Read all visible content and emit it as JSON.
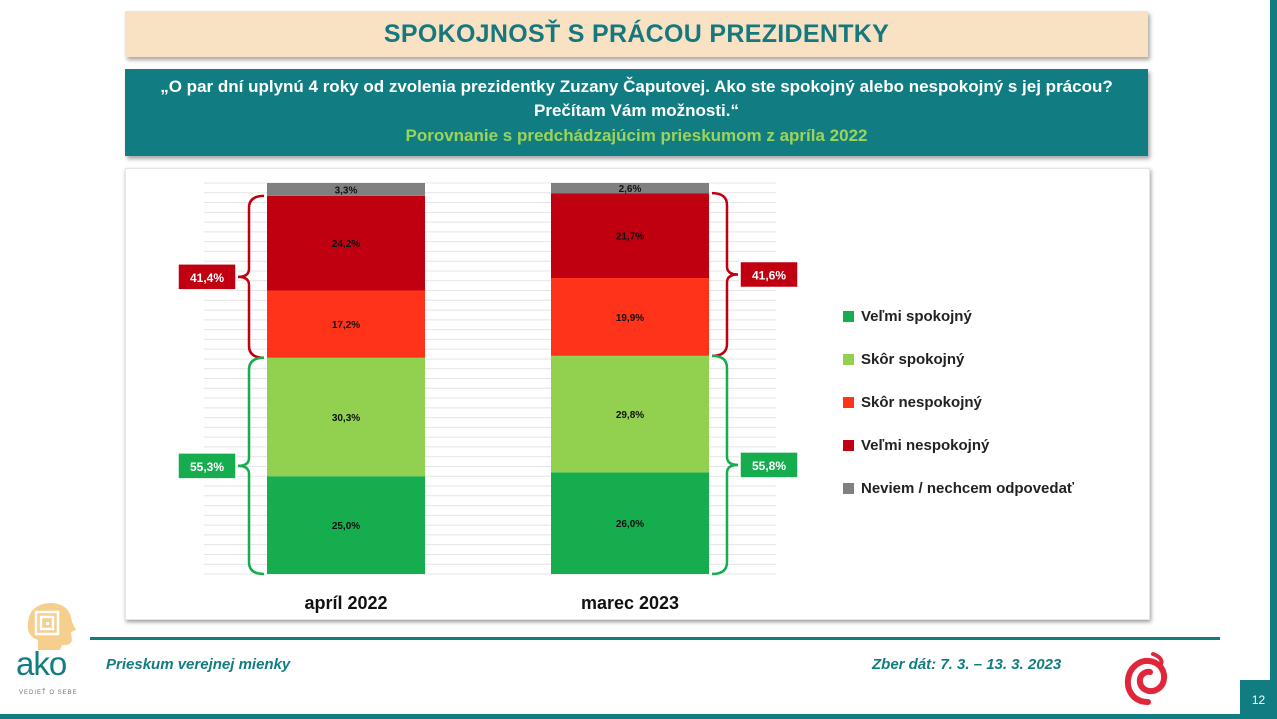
{
  "title": "SPOKOJNOSŤ S PRÁCOU PREZIDENTKY",
  "question": "„O par dní uplynú 4 roky od zvolenia prezidentky Zuzany Čaputovej. Ako ste spokojný alebo nespokojný s jej prácou? Prečítam Vám možnosti.“",
  "comparison": "Porovnanie s predchádzajúcim prieskumom z apríla 2022",
  "chart_data": {
    "type": "bar",
    "stacked": true,
    "percent_scale": true,
    "ylim": [
      0,
      100
    ],
    "grid": true,
    "legend_position": "right",
    "categories": [
      "apríl 2022",
      "marec 2023"
    ],
    "series": [
      {
        "name": "Veľmi spokojný",
        "color": "#16ad4e",
        "values": [
          25.0,
          26.0
        ],
        "labels": [
          "25,0%",
          "26,0%"
        ]
      },
      {
        "name": "Skôr spokojný",
        "color": "#92d050",
        "values": [
          30.3,
          29.8
        ],
        "labels": [
          "30,3%",
          "29,8%"
        ]
      },
      {
        "name": "Skôr nespokojný",
        "color": "#ff3319",
        "values": [
          17.2,
          19.9
        ],
        "labels": [
          "17,2%",
          "19,9%"
        ]
      },
      {
        "name": "Veľmi nespokojný",
        "color": "#c00010",
        "values": [
          24.2,
          21.7
        ],
        "labels": [
          "24,2%",
          "21,7%"
        ]
      },
      {
        "name": "Neviem / nechcem odpovedať",
        "color": "#808080",
        "values": [
          3.3,
          2.6
        ],
        "labels": [
          "3,3%",
          "2,6%"
        ]
      }
    ],
    "annotations": [
      {
        "category": "apríl 2022",
        "side": "left",
        "group": "dissatisfied",
        "value": 41.4,
        "label": "41,4%",
        "color": "#c00010"
      },
      {
        "category": "apríl 2022",
        "side": "left",
        "group": "satisfied",
        "value": 55.3,
        "label": "55,3%",
        "color": "#16ad4e"
      },
      {
        "category": "marec 2023",
        "side": "right",
        "group": "dissatisfied",
        "value": 41.6,
        "label": "41,6%",
        "color": "#c00010"
      },
      {
        "category": "marec 2023",
        "side": "right",
        "group": "satisfied",
        "value": 55.8,
        "label": "55,8%",
        "color": "#16ad4e"
      }
    ]
  },
  "footer": {
    "left": "Prieskum verejnej mienky",
    "right": "Zber dát: 7. 3. – 13. 3. 2023",
    "page": "12"
  },
  "logo": {
    "brand": "ako",
    "tagline": "VEDIEŤ O SEBE",
    "icon": "head-maze-logo-icon",
    "right_icon": "spiral-logo-icon",
    "brand_color": "#117d82"
  }
}
